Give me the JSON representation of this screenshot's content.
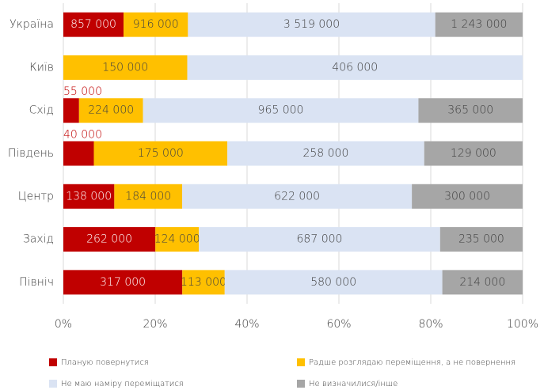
{
  "chart_data": {
    "type": "bar",
    "orientation": "horizontal",
    "stacked": "percent",
    "categories": [
      "Україна",
      "Київ",
      "Схід",
      "Південь",
      "Центр",
      "Захід",
      "Північ"
    ],
    "series": [
      {
        "name": "Планую повернутися",
        "color": "#c00000",
        "values": [
          857000,
          null,
          55000,
          40000,
          138000,
          262000,
          317000
        ],
        "value_labels": [
          "857 000",
          null,
          "55 000",
          "40 000",
          "138 000",
          "262 000",
          "317 000"
        ]
      },
      {
        "name": "Радше розглядаю переміщення, а не повернення",
        "color": "#ffc000",
        "values": [
          916000,
          150000,
          224000,
          175000,
          184000,
          124000,
          113000
        ],
        "value_labels": [
          "916 000",
          "150 000",
          "224 000",
          "175 000",
          "184 000",
          "124 000",
          "113 000"
        ]
      },
      {
        "name": "Не маю наміру переміщатися",
        "color": "#dae3f3",
        "values": [
          3519000,
          406000,
          965000,
          258000,
          622000,
          687000,
          580000
        ],
        "value_labels": [
          "3 519 000",
          "406 000",
          "965 000",
          "258 000",
          "622 000",
          "687 000",
          "580 000"
        ]
      },
      {
        "name": "Не визначилися/інше",
        "color": "#a6a6a6",
        "values": [
          1243000,
          null,
          365000,
          129000,
          300000,
          235000,
          214000
        ],
        "value_labels": [
          "1 243 000",
          null,
          "365 000",
          "129 000",
          "300 000",
          "235 000",
          "214 000"
        ]
      }
    ],
    "xlim": [
      0,
      100
    ],
    "xticks": [
      {
        "value": 0,
        "label": "0%"
      },
      {
        "value": 20,
        "label": "20%"
      },
      {
        "value": 40,
        "label": "40%"
      },
      {
        "value": 60,
        "label": "60%"
      },
      {
        "value": 80,
        "label": "80%"
      },
      {
        "value": 100,
        "label": "100%"
      }
    ],
    "grid": true
  }
}
